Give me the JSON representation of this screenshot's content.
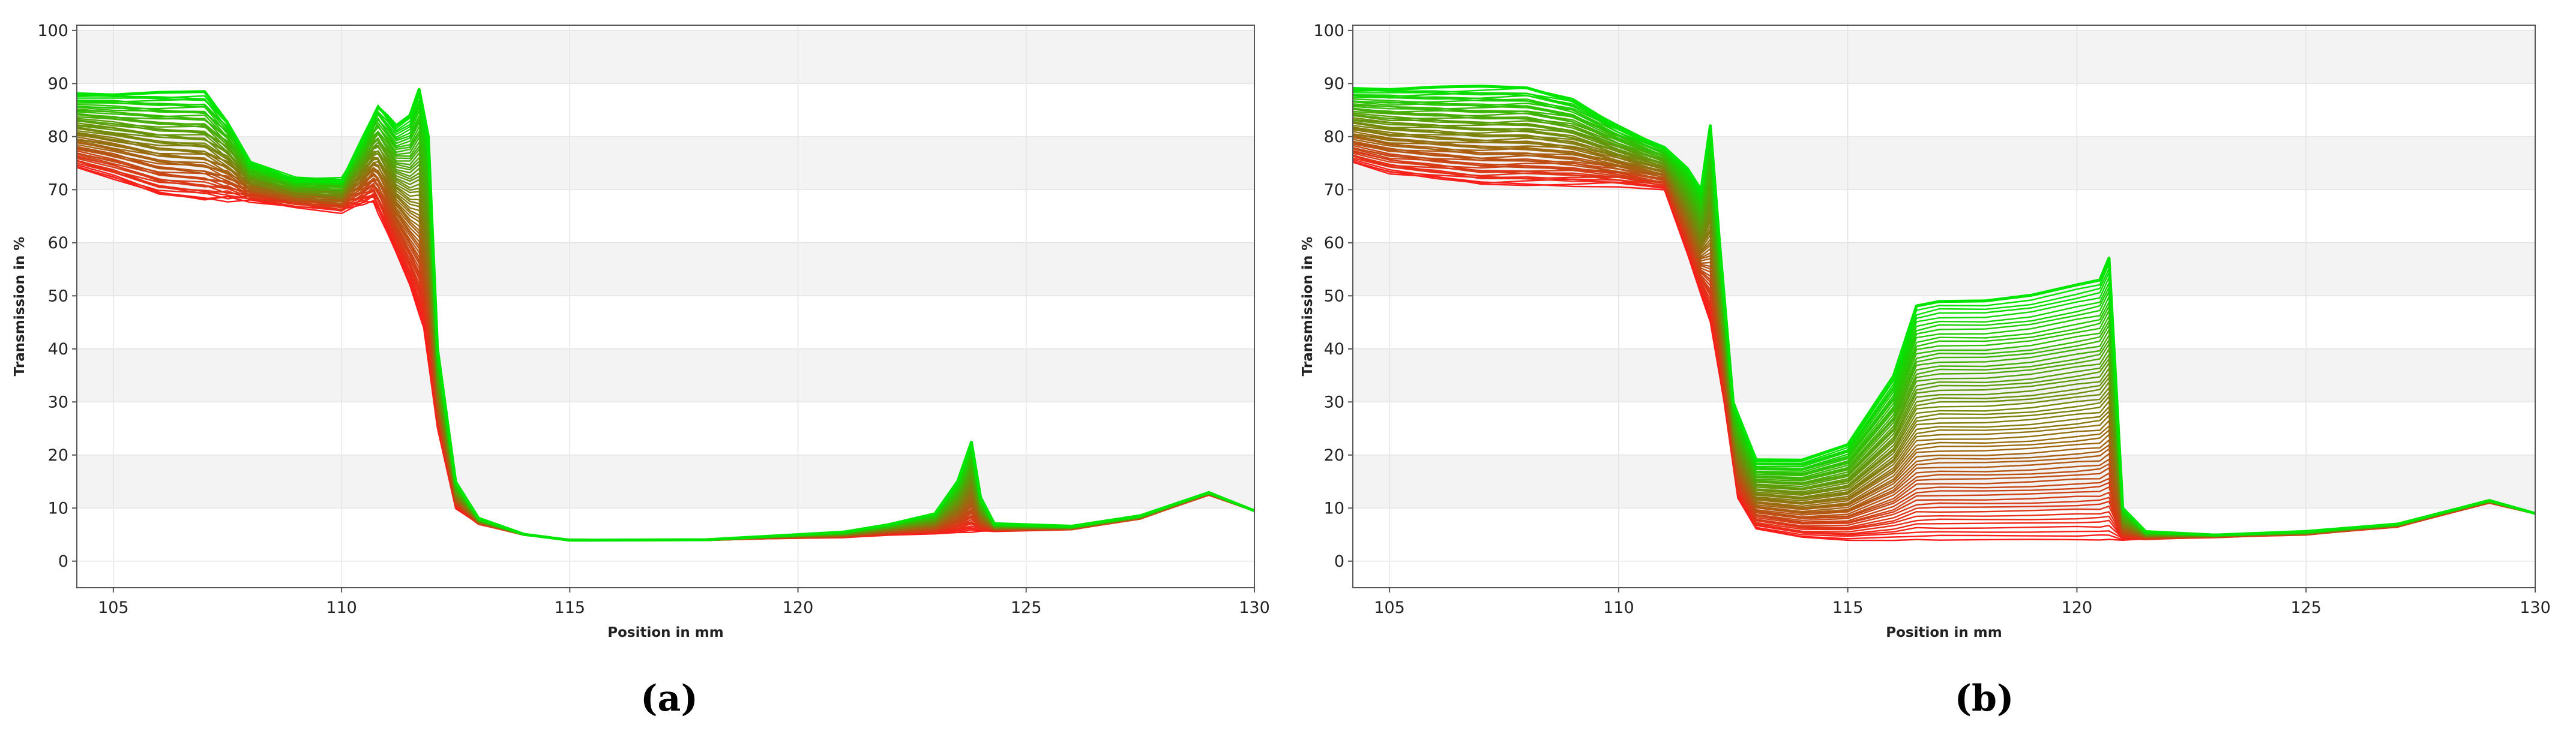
{
  "chart_data": [
    {
      "type": "line",
      "panel_label": "(a)",
      "xlabel": "Position in mm",
      "ylabel": "Transmission in %",
      "xlim": [
        104.2,
        130
      ],
      "ylim": [
        -5,
        101
      ],
      "xticks": [
        105,
        110,
        115,
        120,
        125,
        130
      ],
      "yticks": [
        0,
        10,
        20,
        30,
        40,
        50,
        60,
        70,
        80,
        90,
        100
      ],
      "grid": true,
      "legend": "none",
      "color_start": "#ff1a1a",
      "color_end": "#00e600",
      "series_count": 60,
      "series": [
        {
          "name": "",
          "points": [
            [
              104.2,
              74
            ],
            [
              105,
              72
            ],
            [
              106,
              69
            ],
            [
              107,
              68
            ],
            [
              108,
              68
            ],
            [
              109,
              67
            ],
            [
              110,
              66
            ],
            [
              110.7,
              68
            ],
            [
              111,
              62
            ],
            [
              111.5,
              52
            ],
            [
              111.8,
              44
            ],
            [
              112.1,
              25
            ],
            [
              112.5,
              10
            ],
            [
              113,
              7
            ],
            [
              114,
              5
            ],
            [
              115,
              4
            ],
            [
              118,
              4
            ],
            [
              121,
              4.5
            ],
            [
              122,
              5
            ],
            [
              123,
              5.2
            ],
            [
              124,
              5.6
            ],
            [
              126,
              6
            ],
            [
              127.5,
              8
            ],
            [
              129,
              12.5
            ],
            [
              130,
              9.5
            ]
          ]
        },
        {
          "name": "",
          "points": [
            [
              104.2,
              88
            ],
            [
              105,
              88
            ],
            [
              106,
              88
            ],
            [
              107,
              88
            ],
            [
              107.5,
              83
            ],
            [
              108,
              75
            ],
            [
              109,
              72
            ],
            [
              110,
              72
            ],
            [
              110.5,
              80
            ],
            [
              110.8,
              86
            ],
            [
              111.2,
              82
            ],
            [
              111.5,
              84
            ],
            [
              111.7,
              89
            ],
            [
              111.9,
              80
            ],
            [
              112.1,
              40
            ],
            [
              112.5,
              15
            ],
            [
              113,
              8
            ],
            [
              114,
              5
            ],
            [
              115,
              4
            ],
            [
              118,
              4
            ],
            [
              121,
              5.5
            ],
            [
              122,
              7
            ],
            [
              123,
              9
            ],
            [
              123.5,
              15
            ],
            [
              123.8,
              22.5
            ],
            [
              124,
              12
            ],
            [
              124.3,
              7
            ],
            [
              126,
              6.5
            ],
            [
              127.5,
              8.5
            ],
            [
              129,
              13
            ],
            [
              130,
              9.5
            ]
          ]
        }
      ]
    },
    {
      "type": "line",
      "panel_label": "(b)",
      "xlabel": "Position in mm",
      "ylabel": "Transmission in %",
      "xlim": [
        104.2,
        130
      ],
      "ylim": [
        -5,
        101
      ],
      "xticks": [
        105,
        110,
        115,
        120,
        125,
        130
      ],
      "yticks": [
        0,
        10,
        20,
        30,
        40,
        50,
        60,
        70,
        80,
        90,
        100
      ],
      "grid": true,
      "legend": "none",
      "color_start": "#ff1a1a",
      "color_end": "#00e600",
      "series_count": 60,
      "series": [
        {
          "name": "",
          "points": [
            [
              104.2,
              75
            ],
            [
              105,
              73
            ],
            [
              106,
              72
            ],
            [
              107,
              71
            ],
            [
              108,
              71
            ],
            [
              109,
              71
            ],
            [
              110,
              71
            ],
            [
              111,
              70
            ],
            [
              111.5,
              58
            ],
            [
              112,
              45
            ],
            [
              112.3,
              30
            ],
            [
              112.6,
              12
            ],
            [
              113,
              6
            ],
            [
              114,
              4.5
            ],
            [
              115,
              4
            ],
            [
              118,
              4
            ],
            [
              120,
              4
            ],
            [
              121,
              4
            ],
            [
              123,
              4.5
            ],
            [
              125,
              5
            ],
            [
              127,
              6.5
            ],
            [
              129,
              11
            ],
            [
              130,
              9
            ]
          ]
        },
        {
          "name": "",
          "points": [
            [
              104.2,
              89
            ],
            [
              105,
              89
            ],
            [
              106,
              89
            ],
            [
              107,
              89
            ],
            [
              108,
              89
            ],
            [
              109,
              87
            ],
            [
              110,
              82
            ],
            [
              111,
              78
            ],
            [
              111.5,
              74
            ],
            [
              111.8,
              70
            ],
            [
              112,
              82
            ],
            [
              112.2,
              60
            ],
            [
              112.5,
              30
            ],
            [
              113,
              19
            ],
            [
              114,
              19
            ],
            [
              115,
              22
            ],
            [
              116,
              35
            ],
            [
              116.5,
              48
            ],
            [
              117,
              49
            ],
            [
              118,
              49
            ],
            [
              119,
              50
            ],
            [
              120,
              52
            ],
            [
              120.5,
              53
            ],
            [
              120.7,
              57
            ],
            [
              121,
              10
            ],
            [
              121.5,
              5.5
            ],
            [
              123,
              5
            ],
            [
              125,
              5.5
            ],
            [
              127,
              7
            ],
            [
              129,
              11.5
            ],
            [
              130,
              9
            ]
          ]
        }
      ]
    }
  ]
}
